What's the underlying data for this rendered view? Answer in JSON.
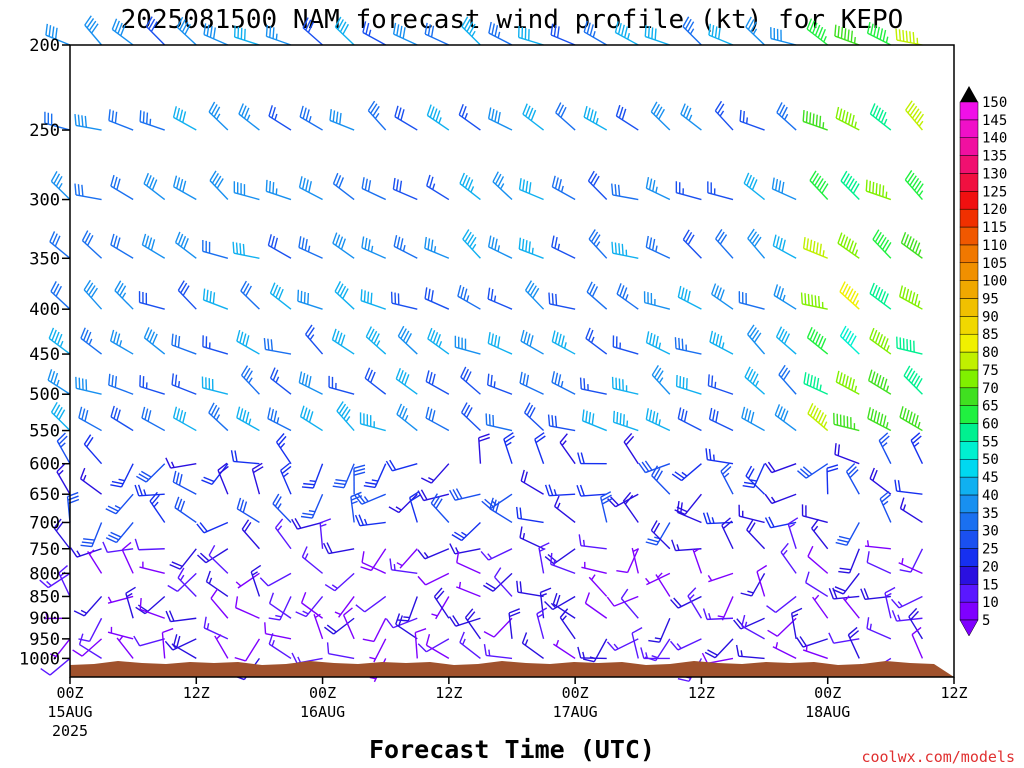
{
  "chart_data": {
    "type": "wind_barb_profile",
    "title": "2025081500 NAM forecast wind profile (kt) for KEPO",
    "xlabel": "Forecast Time (UTC)",
    "credit": "coolwx.com/models",
    "x_ticks": [
      {
        "label": "00Z",
        "sub": "15AUG",
        "sub2": "2025",
        "hour": 0
      },
      {
        "label": "12Z",
        "sub": "",
        "sub2": "",
        "hour": 12
      },
      {
        "label": "00Z",
        "sub": "16AUG",
        "sub2": "",
        "hour": 24
      },
      {
        "label": "12Z",
        "sub": "",
        "sub2": "",
        "hour": 36
      },
      {
        "label": "00Z",
        "sub": "17AUG",
        "sub2": "",
        "hour": 48
      },
      {
        "label": "12Z",
        "sub": "",
        "sub2": "",
        "hour": 60
      },
      {
        "label": "00Z",
        "sub": "18AUG",
        "sub2": "",
        "hour": 72
      },
      {
        "label": "12Z",
        "sub": "",
        "sub2": "",
        "hour": 84
      }
    ],
    "y_ticks": [
      200,
      250,
      300,
      350,
      400,
      450,
      500,
      550,
      600,
      650,
      700,
      750,
      800,
      850,
      900,
      950,
      1000
    ],
    "y_range_hpa": [
      200,
      1050
    ],
    "x_range_hours": [
      0,
      84
    ],
    "colorbar": {
      "values": [
        5,
        10,
        15,
        20,
        25,
        30,
        35,
        40,
        45,
        50,
        55,
        60,
        65,
        70,
        75,
        80,
        85,
        90,
        95,
        100,
        105,
        110,
        115,
        120,
        125,
        130,
        135,
        140,
        145,
        150
      ],
      "colors": [
        "#7f00ff",
        "#5a18ff",
        "#2a10e0",
        "#1630f0",
        "#1a50f0",
        "#1a70f0",
        "#1890f0",
        "#10b0f0",
        "#00d8f0",
        "#00f0d0",
        "#00f090",
        "#20f040",
        "#40e020",
        "#80f000",
        "#c0f000",
        "#f0f000",
        "#f0d800",
        "#f0c000",
        "#f0a800",
        "#f09000",
        "#f07800",
        "#f05800",
        "#f03000",
        "#f01010",
        "#f01040",
        "#f01070",
        "#f010a0",
        "#f010c8",
        "#f010e8",
        "#ff20ff"
      ]
    },
    "terrain_color": "#a0522d",
    "barbs": {
      "hours": [
        0,
        3,
        6,
        9,
        12,
        15,
        18,
        21,
        24,
        27,
        30,
        33,
        36,
        39,
        42,
        45,
        48,
        51,
        54,
        57,
        60,
        63,
        66,
        69,
        72,
        75,
        78,
        81,
        84
      ],
      "levels_hpa": [
        200,
        250,
        300,
        350,
        400,
        450,
        500,
        550,
        600,
        650,
        700,
        750,
        800,
        850,
        900,
        950,
        1000
      ],
      "note": "Wind barbs shown at each forecast hour and pressure level; predominantly westerly-northwesterly flow aloft (25-80 kt), weaker variable winds (5-20 kt) in the lower troposphere."
    }
  }
}
